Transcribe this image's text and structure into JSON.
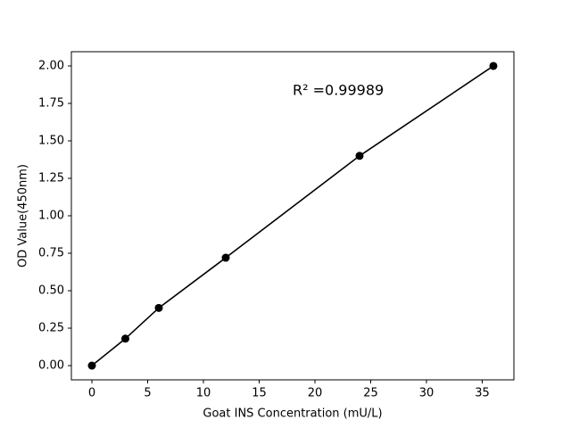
{
  "chart_data": {
    "type": "line",
    "xlabel": "Goat INS Concentration (mU/L)",
    "ylabel": "OD Value(450nm)",
    "annotation": "R² =0.99989",
    "x": [
      0,
      3,
      6,
      12,
      24,
      36
    ],
    "series": [
      {
        "color": "#000000",
        "values": [
          0,
          0.18,
          0.385,
          0.72,
          1.4,
          2.0
        ]
      }
    ],
    "xlim": [
      -1.84,
      37.84
    ],
    "ylim": [
      -0.095,
      2.095
    ],
    "xticks": [
      0,
      5,
      10,
      15,
      20,
      25,
      30,
      35
    ],
    "yticks": [
      {
        "value": 0,
        "label": "0.00"
      },
      {
        "value": 0.25,
        "label": "0.25"
      },
      {
        "value": 0.5,
        "label": "0.50"
      },
      {
        "value": 0.75,
        "label": "0.75"
      },
      {
        "value": 1,
        "label": "1.00"
      },
      {
        "value": 1.25,
        "label": "1.25"
      },
      {
        "value": 1.5,
        "label": "1.50"
      },
      {
        "value": 1.75,
        "label": "1.75"
      },
      {
        "value": 2,
        "label": "2.00"
      }
    ],
    "grid": false
  }
}
